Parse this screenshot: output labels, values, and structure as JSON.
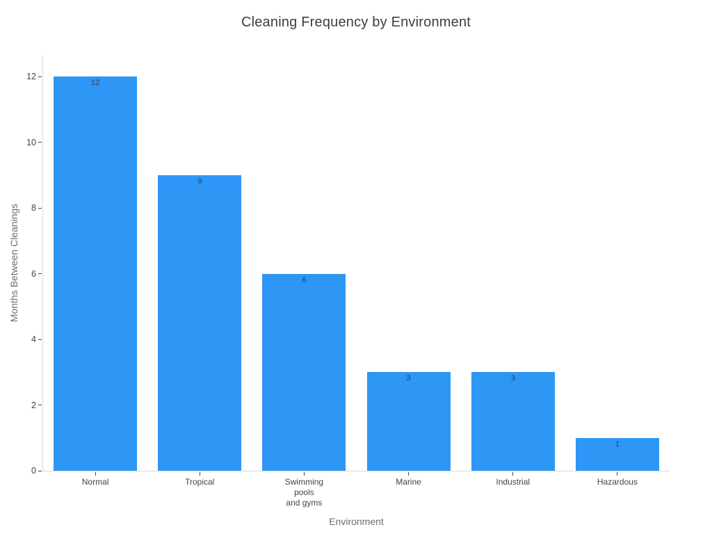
{
  "chart_data": {
    "type": "bar",
    "title": "Cleaning Frequency by Environment",
    "xlabel": "Environment",
    "ylabel": "Months Between Cleanings",
    "categories": [
      "Normal",
      "Tropical",
      "Swimming\npools\nand gyms",
      "Marine",
      "Industrial",
      "Hazardous"
    ],
    "values": [
      12,
      9,
      6,
      3,
      3,
      1
    ],
    "bar_labels": [
      "12",
      "9",
      "6",
      "3",
      "3",
      "1"
    ],
    "yticks": [
      0,
      2,
      4,
      6,
      8,
      10,
      12
    ],
    "ylim": [
      0,
      12.64
    ],
    "grid": false,
    "legend": "none",
    "colors": {
      "bar": "#2E96F5",
      "barlabel": "#2a3f5f",
      "title": "#3d3d3d",
      "ticklabel": "#444444",
      "axistitle": "#6e6e6e",
      "axis": "#d9d9d9",
      "tick": "#444444",
      "bg": "#ffffff"
    }
  }
}
